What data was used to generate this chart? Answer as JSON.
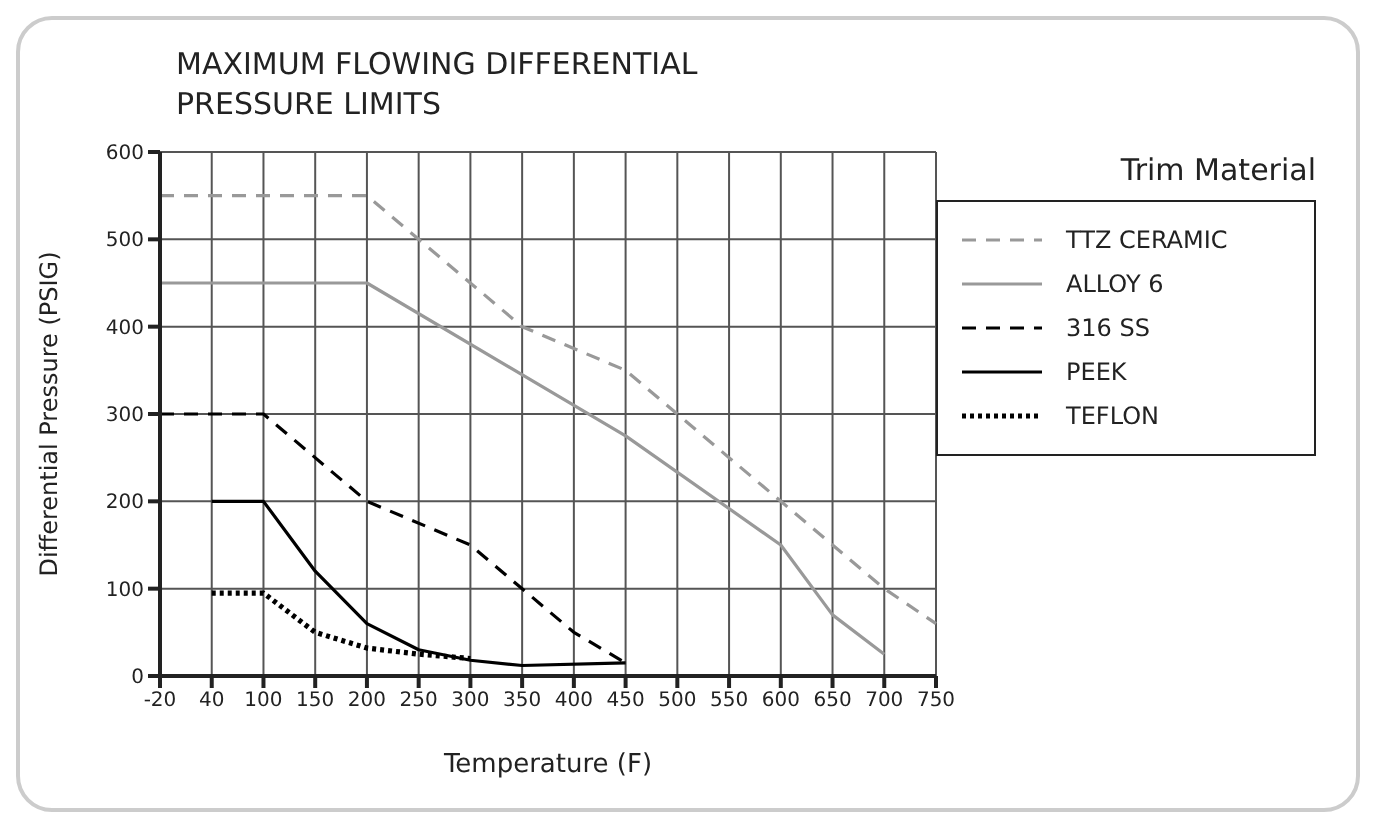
{
  "chart_data": {
    "type": "line",
    "title": "MAXIMUM FLOWING DIFFERENTIAL\nPRESSURE LIMITS",
    "xlabel": "Temperature (F)",
    "ylabel": "Differential Pressure (PSIG)",
    "legend_title": "Trim Material",
    "categories": [
      "-20",
      "40",
      "100",
      "150",
      "200",
      "250",
      "300",
      "350",
      "400",
      "450",
      "500",
      "550",
      "600",
      "650",
      "700",
      "750"
    ],
    "series": [
      {
        "name": "TTZ CERAMIC",
        "color": "#999999",
        "line_style": "dashed",
        "values": [
          550,
          550,
          550,
          550,
          550,
          null,
          null,
          400,
          null,
          350,
          null,
          null,
          200,
          null,
          100,
          60
        ]
      },
      {
        "name": "ALLOY 6",
        "color": "#999999",
        "line_style": "solid",
        "values": [
          450,
          450,
          450,
          450,
          450,
          null,
          null,
          null,
          null,
          275,
          null,
          null,
          150,
          70,
          25,
          null
        ]
      },
      {
        "name": "316 SS",
        "color": "#000000",
        "line_style": "dashed",
        "values": [
          300,
          300,
          300,
          null,
          200,
          null,
          150,
          100,
          50,
          15,
          null,
          null,
          null,
          null,
          null,
          null
        ]
      },
      {
        "name": "PEEK",
        "color": "#000000",
        "line_style": "solid",
        "values": [
          null,
          200,
          200,
          120,
          60,
          30,
          18,
          12,
          null,
          15,
          null,
          null,
          null,
          null,
          null,
          null
        ]
      },
      {
        "name": "TEFLON",
        "color": "#000000",
        "line_style": "dotted",
        "values": [
          null,
          95,
          95,
          50,
          32,
          25,
          20,
          null,
          null,
          null,
          null,
          null,
          null,
          null,
          null,
          null
        ]
      }
    ],
    "ylim": [
      0,
      600
    ],
    "yticks": [
      0,
      100,
      200,
      300,
      400,
      500,
      600
    ],
    "grid": true,
    "legend": "right"
  }
}
